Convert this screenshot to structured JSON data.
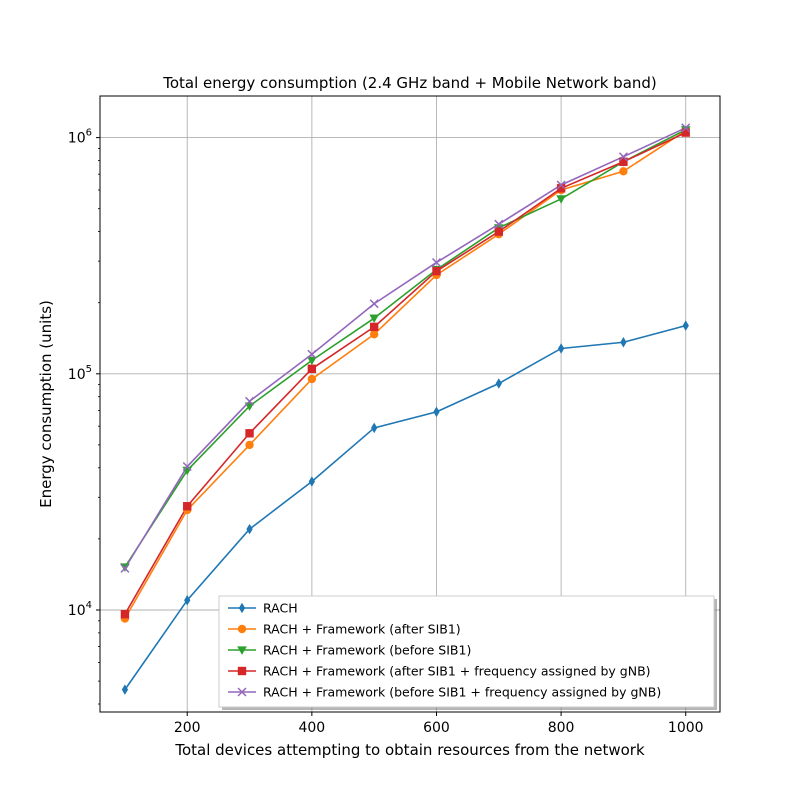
{
  "chart_data": {
    "type": "line",
    "title": "Total energy consumption (2.4 GHz band + Mobile Network band)",
    "xlabel": "Total devices attempting to obtain resources from the network",
    "ylabel": "Energy consumption (units)",
    "yscale": "log",
    "xlim": [
      60,
      1055
    ],
    "ylim": [
      3700,
      1500000
    ],
    "x_ticks": [
      200,
      400,
      600,
      800,
      1000
    ],
    "x_tick_labels": [
      "200",
      "400",
      "600",
      "800",
      "1000"
    ],
    "y_ticks": [
      10000,
      100000,
      1000000
    ],
    "y_tick_labels": [
      {
        "base": "10",
        "exp": "4"
      },
      {
        "base": "10",
        "exp": "5"
      },
      {
        "base": "10",
        "exp": "6"
      }
    ],
    "grid": true,
    "legend_position": "lower-right",
    "x": [
      100,
      200,
      300,
      400,
      500,
      600,
      700,
      800,
      900,
      1000
    ],
    "series": [
      {
        "name": "RACH",
        "color": "#1f77b4",
        "marker": "diamond",
        "values": [
          4600,
          11000,
          22000,
          35000,
          59000,
          69000,
          91000,
          128000,
          136000,
          160000
        ]
      },
      {
        "name": "RACH + Framework (after SIB1)",
        "color": "#ff7f0e",
        "marker": "circle",
        "values": [
          9200,
          26500,
          50000,
          95000,
          147000,
          262000,
          390000,
          600000,
          720000,
          1070000
        ]
      },
      {
        "name": "RACH + Framework (before SIB1)",
        "color": "#2ca02c",
        "marker": "triangle-down",
        "values": [
          15200,
          39000,
          73000,
          114000,
          172000,
          276000,
          415000,
          550000,
          790000,
          1080000
        ]
      },
      {
        "name": "RACH + Framework (after SIB1 + frequency assigned by gNB)",
        "color": "#d62728",
        "marker": "square",
        "values": [
          9600,
          27500,
          56000,
          105000,
          158000,
          272000,
          400000,
          610000,
          790000,
          1050000
        ]
      },
      {
        "name": "RACH + Framework (before SIB1 + frequency assigned by gNB)",
        "color": "#9467bd",
        "marker": "x",
        "values": [
          15000,
          40500,
          76500,
          121000,
          198000,
          296000,
          430000,
          630000,
          830000,
          1100000
        ]
      }
    ]
  }
}
